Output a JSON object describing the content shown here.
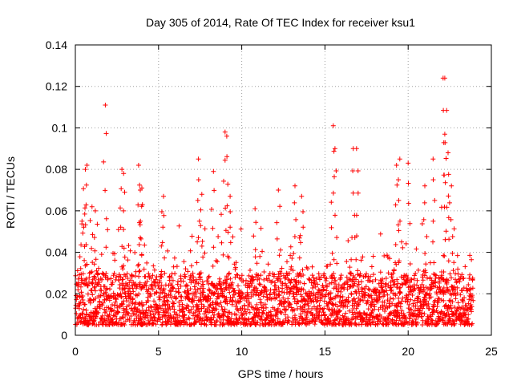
{
  "chart_data": {
    "type": "scatter",
    "title": "Day 305 of 2014, Rate Of TEC Index for receiver ksu1",
    "xlabel": "GPS time / hours",
    "ylabel": "ROTI / TECUs",
    "xlim": [
      0,
      25
    ],
    "ylim": [
      0,
      0.14
    ],
    "xticks": [
      0,
      5,
      10,
      15,
      20,
      25
    ],
    "xtick_labels": [
      "0",
      "5",
      "10",
      "15",
      "20",
      "25"
    ],
    "yticks": [
      0,
      0.02,
      0.04,
      0.06,
      0.08,
      0.1,
      0.12,
      0.14
    ],
    "ytick_labels": [
      "0",
      "0.02",
      "0.04",
      "0.06",
      "0.08",
      "0.1",
      "0.12",
      "0.14"
    ],
    "grid": true,
    "marker": "+",
    "color": "#ff0000",
    "series": [
      {
        "name": "ROTI",
        "x_range": [
          0,
          23.9
        ],
        "typical_range": [
          0.005,
          0.03
        ],
        "baseline_mean": 0.015,
        "points": [
          [
            0.4,
            0.055
          ],
          [
            0.6,
            0.08
          ],
          [
            0.7,
            0.082
          ],
          [
            1.0,
            0.062
          ],
          [
            1.2,
            0.06
          ],
          [
            1.8,
            0.111
          ],
          [
            2.8,
            0.08
          ],
          [
            2.9,
            0.078
          ],
          [
            3.8,
            0.082
          ],
          [
            3.9,
            0.07
          ],
          [
            4.0,
            0.071
          ],
          [
            5.3,
            0.067
          ],
          [
            7.4,
            0.085
          ],
          [
            7.6,
            0.068
          ],
          [
            8.3,
            0.079
          ],
          [
            9.0,
            0.098
          ],
          [
            9.1,
            0.096
          ],
          [
            9.3,
            0.067
          ],
          [
            10.8,
            0.061
          ],
          [
            12.2,
            0.07
          ],
          [
            13.2,
            0.072
          ],
          [
            13.6,
            0.067
          ],
          [
            15.5,
            0.101
          ],
          [
            15.6,
            0.09
          ],
          [
            16.7,
            0.09
          ],
          [
            16.9,
            0.09
          ],
          [
            19.3,
            0.082
          ],
          [
            19.5,
            0.085
          ],
          [
            20.0,
            0.083
          ],
          [
            21.0,
            0.072
          ],
          [
            21.5,
            0.085
          ],
          [
            22.1,
            0.124
          ],
          [
            22.2,
            0.124
          ],
          [
            22.2,
            0.097
          ],
          [
            22.4,
            0.088
          ],
          [
            22.6,
            0.072
          ]
        ]
      }
    ]
  }
}
